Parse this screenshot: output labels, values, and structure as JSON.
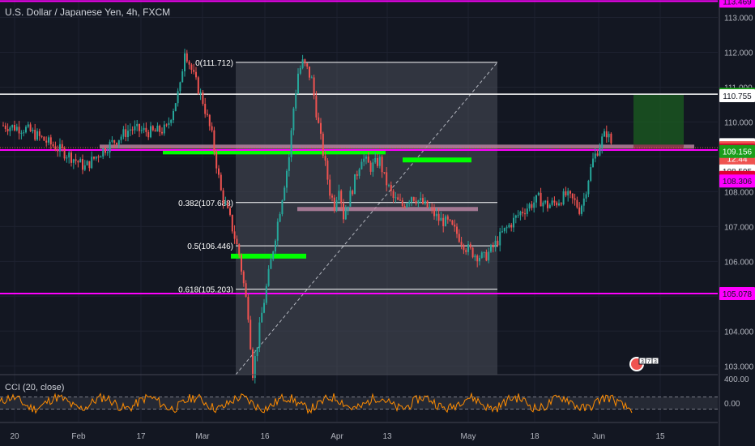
{
  "header": {
    "title": "U.S. Dollar / Japanese Yen, 4h, FXCM"
  },
  "cci": {
    "label": "CCI (20, close)",
    "ticks": [
      "400.00",
      "0.00"
    ]
  },
  "colors": {
    "background": "#131722",
    "up": "#26a69a",
    "down": "#ef5350",
    "magenta": "#ff00ff",
    "green": "#00ff00",
    "pink_zone": "#c08aa8",
    "cci_line": "#ff8c00",
    "fib_box": "#4a4e5a"
  },
  "chart_data": {
    "type": "candlestick",
    "symbol": "USDJPY",
    "y_axis": {
      "min": 102.75,
      "max": 113.5,
      "ticks": [
        "113.000",
        "112.000",
        "111.000",
        "110.000",
        "109.000",
        "108.000",
        "107.000",
        "106.000",
        "105.000",
        "104.000",
        "103.000"
      ]
    },
    "x_axis": {
      "ticks": [
        "20",
        "Feb",
        "17",
        "Mar",
        "16",
        "Apr",
        "13",
        "May",
        "18",
        "Jun",
        "15"
      ]
    },
    "price_path": [
      [
        0,
        109.9
      ],
      [
        5,
        109.8
      ],
      [
        10,
        109.4
      ],
      [
        15,
        109.0
      ],
      [
        18,
        108.7
      ],
      [
        22,
        109.2
      ],
      [
        28,
        109.8
      ],
      [
        33,
        109.7
      ],
      [
        36,
        109.8
      ],
      [
        39,
        111.0
      ],
      [
        40,
        112.1
      ],
      [
        42,
        111.3
      ],
      [
        44,
        110.6
      ],
      [
        46,
        109.6
      ],
      [
        48,
        108.0
      ],
      [
        50,
        107.2
      ],
      [
        52,
        106.2
      ],
      [
        54,
        104.5
      ],
      [
        55,
        102.8
      ],
      [
        57,
        104.5
      ],
      [
        59,
        106.0
      ],
      [
        61,
        107.5
      ],
      [
        63,
        109.0
      ],
      [
        64,
        110.4
      ],
      [
        65,
        111.4
      ],
      [
        66,
        111.7
      ],
      [
        67,
        111.5
      ],
      [
        68,
        111.2
      ],
      [
        69,
        110.3
      ],
      [
        70,
        109.5
      ],
      [
        72,
        108.0
      ],
      [
        73,
        107.6
      ],
      [
        74,
        108.2
      ],
      [
        75,
        107.3
      ],
      [
        76,
        107.7
      ],
      [
        77,
        108.1
      ],
      [
        79,
        109.0
      ],
      [
        81,
        108.7
      ],
      [
        83,
        108.9
      ],
      [
        84,
        108.4
      ],
      [
        86,
        107.8
      ],
      [
        88,
        107.6
      ],
      [
        90,
        107.9
      ],
      [
        92,
        107.7
      ],
      [
        94,
        107.5
      ],
      [
        96,
        107.2
      ],
      [
        98,
        107.1
      ],
      [
        100,
        106.8
      ],
      [
        102,
        106.4
      ],
      [
        104,
        106.2
      ],
      [
        106,
        106.1
      ],
      [
        108,
        106.4
      ],
      [
        110,
        106.8
      ],
      [
        112,
        107.1
      ],
      [
        114,
        107.4
      ],
      [
        116,
        107.6
      ],
      [
        118,
        107.8
      ],
      [
        120,
        107.6
      ],
      [
        122,
        107.7
      ],
      [
        124,
        107.9
      ],
      [
        126,
        107.7
      ],
      [
        127,
        107.5
      ],
      [
        128,
        107.8
      ],
      [
        129,
        108.4
      ],
      [
        130,
        108.9
      ],
      [
        131,
        109.2
      ],
      [
        132,
        109.5
      ],
      [
        133,
        109.7
      ],
      [
        134,
        109.4
      ]
    ],
    "horizontal_levels": [
      {
        "price": 113.469,
        "color": "magenta",
        "label": "113.469"
      },
      {
        "price": 110.799,
        "color": "white",
        "label": "110.799"
      },
      {
        "price": 109.194,
        "color": "magenta",
        "label": "109.194"
      },
      {
        "price": 105.078,
        "color": "magenta",
        "label": "105.078"
      }
    ],
    "price_labels": [
      {
        "price": 113.469,
        "text": "113.469",
        "bg": "#ff00ff",
        "fg": "#131722"
      },
      {
        "price": 110.799,
        "text": "110.799",
        "bg": "#1a9e1a",
        "fg": "#ffffff"
      },
      {
        "price": 110.755,
        "text": "110.755",
        "bg": "#ffffff",
        "fg": "#131722"
      },
      {
        "price": 109.35,
        "text": "109.350",
        "bg": "#ffffff",
        "fg": "#131722"
      },
      {
        "price": 109.261,
        "text": "109.261",
        "bg": "#ef5350",
        "fg": "#ffffff"
      },
      {
        "price": 108.95,
        "text": "12:44",
        "bg": "#ef5350",
        "fg": "#ffffff"
      },
      {
        "price": 109.194,
        "text": "109.194",
        "bg": "#e00030",
        "fg": "#ffffff"
      },
      {
        "price": 109.156,
        "text": "109.156",
        "bg": "#1a9e1a",
        "fg": "#ffffff"
      },
      {
        "price": 108.595,
        "text": "108.595",
        "bg": "#ffffff",
        "fg": "#131722"
      },
      {
        "price": 108.409,
        "text": "108.409",
        "bg": "#e00030",
        "fg": "#ffffff"
      },
      {
        "price": 108.306,
        "text": "108.306",
        "bg": "#ff00ff",
        "fg": "#131722"
      },
      {
        "price": 105.078,
        "text": "105.078",
        "bg": "#ff00ff",
        "fg": "#131722"
      }
    ],
    "fibonacci": {
      "levels": [
        {
          "label": "0(111.712)",
          "price": 111.712
        },
        {
          "label": "0.382(107.688)",
          "price": 107.688
        },
        {
          "label": "0.5(106.446)",
          "price": 106.446
        },
        {
          "label": "0.618(105.203)",
          "price": 105.203
        }
      ]
    }
  }
}
